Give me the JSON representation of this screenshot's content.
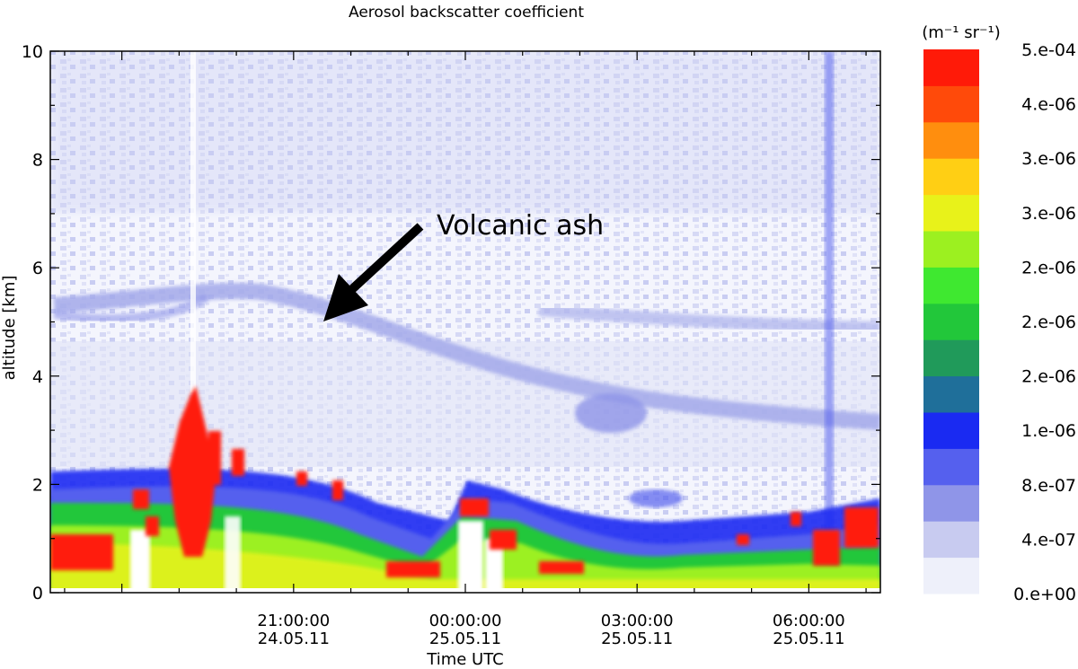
{
  "chart_data": {
    "type": "heatmap",
    "title": "Aerosol backscatter coefficient",
    "xlabel": "Time UTC",
    "ylabel": "altitude [km]",
    "ylim": [
      0,
      10
    ],
    "yticks": [
      0,
      2,
      4,
      6,
      8,
      10
    ],
    "y_minor_step": 1,
    "xlim": [
      "24.05.11 16:45",
      "25.05.11 07:15"
    ],
    "xticks": [
      {
        "time": "21:00:00",
        "date": "24.05.11"
      },
      {
        "time": "00:00:00",
        "date": "25.05.11"
      },
      {
        "time": "03:00:00",
        "date": "25.05.11"
      },
      {
        "time": "06:00:00",
        "date": "25.05.11"
      }
    ],
    "x_minor_step_hours": 1,
    "colorbar": {
      "unit_label": "(m⁻¹ sr⁻¹)",
      "tick_labels": [
        "5.e-04",
        "4.e-06",
        "3.e-06",
        "3.e-06",
        "2.e-06",
        "2.e-06",
        "2.e-06",
        "1.e-06",
        "8.e-07",
        "4.e-07",
        "0.e+00"
      ],
      "colors": [
        "#eef0fa",
        "#c8cbf0",
        "#8f95e8",
        "#5560ee",
        "#1a2af2",
        "#1f6f9a",
        "#209a5a",
        "#22c73a",
        "#3fe830",
        "#9cf020",
        "#e8f21a",
        "#ffcf14",
        "#ff8e0e",
        "#ff4a0a",
        "#ff1a08"
      ]
    },
    "annotations": [
      {
        "text": "Volcanic ash",
        "arrow_to": {
          "time": "24.05.11 22:30",
          "altitude_km": 5.0
        }
      }
    ],
    "features": [
      {
        "name": "ash_layer_descending",
        "altitude_km_start": 5.6,
        "altitude_km_end": 3.3,
        "level": "low-medium"
      },
      {
        "name": "boundary_layer",
        "top_km": 2.0,
        "level": "high"
      },
      {
        "name": "cloud_plume",
        "time": "24.05.11 20:30",
        "top_km": 3.8,
        "level": "saturated"
      }
    ]
  }
}
